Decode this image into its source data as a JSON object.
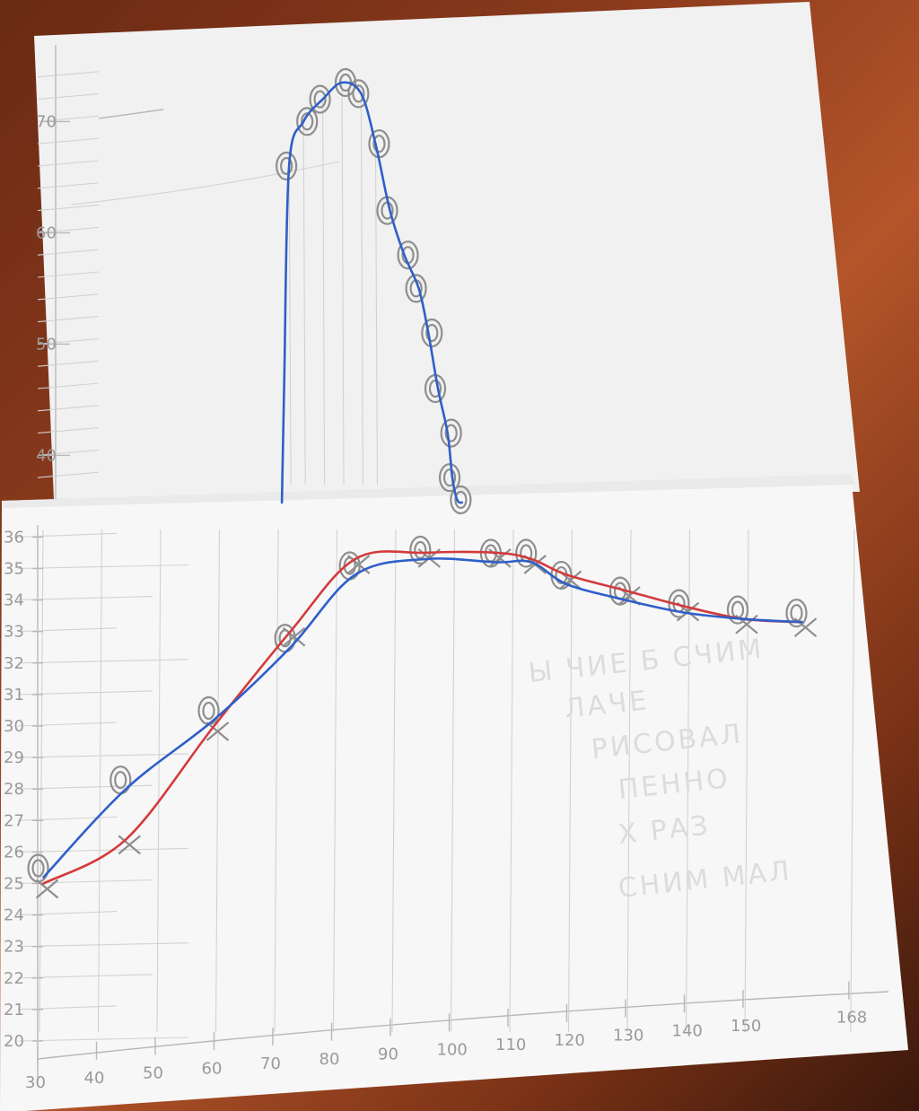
{
  "chart_data": [
    {
      "type": "line",
      "title": "",
      "xlabel": "",
      "ylabel": "",
      "xlim": [
        30,
        165
      ],
      "ylim": [
        36,
        75
      ],
      "y_ticks": [
        "40",
        "50",
        "60",
        "70"
      ],
      "grid": true,
      "series": [
        {
          "color": "#2f5fc8",
          "marker": "o",
          "x": [
            79,
            82,
            86,
            90,
            94,
            97,
            100,
            103,
            106,
            108,
            110,
            112,
            113,
            114
          ],
          "y": [
            66,
            70,
            72,
            73.5,
            72.5,
            68,
            62,
            58,
            55,
            51,
            46,
            42,
            38,
            36
          ]
        }
      ]
    },
    {
      "type": "line",
      "title": "",
      "xlabel": "",
      "ylabel": "",
      "xlim": [
        30,
        168
      ],
      "ylim": [
        20,
        36
      ],
      "x_ticks": [
        "30",
        "40",
        "50",
        "60",
        "70",
        "80",
        "90",
        "100",
        "110",
        "120",
        "130",
        "140",
        "150",
        "168"
      ],
      "y_ticks": [
        "20",
        "21",
        "22",
        "23",
        "24",
        "25",
        "26",
        "27",
        "28",
        "29",
        "30",
        "31",
        "32",
        "33",
        "34",
        "35",
        "36"
      ],
      "grid": true,
      "series": [
        {
          "color": "#2f5fc8",
          "marker": "o",
          "x": [
            31,
            45,
            60,
            73,
            84,
            96,
            108,
            114,
            120,
            130,
            140,
            150,
            160
          ],
          "y": [
            25.2,
            28,
            30.2,
            32.5,
            34.8,
            35.3,
            35.2,
            35.2,
            34.5,
            34.0,
            33.6,
            33.4,
            33.3
          ]
        },
        {
          "color": "#d43a3c",
          "marker": "x",
          "x": [
            31,
            45,
            60,
            73,
            84,
            96,
            108,
            114,
            120,
            130,
            140,
            150,
            160
          ],
          "y": [
            25.0,
            26.4,
            30.0,
            33.0,
            35.3,
            35.5,
            35.5,
            35.3,
            34.8,
            34.3,
            33.8,
            33.4,
            33.3
          ]
        }
      ]
    }
  ],
  "notes": [
    "Ы ЧИЕ Б СЧИМ",
    "ЛАЧЕ",
    "РИСОВАЛ",
    "ПЕННО",
    "Х РАЗ",
    "СНИМ МАЛ"
  ]
}
